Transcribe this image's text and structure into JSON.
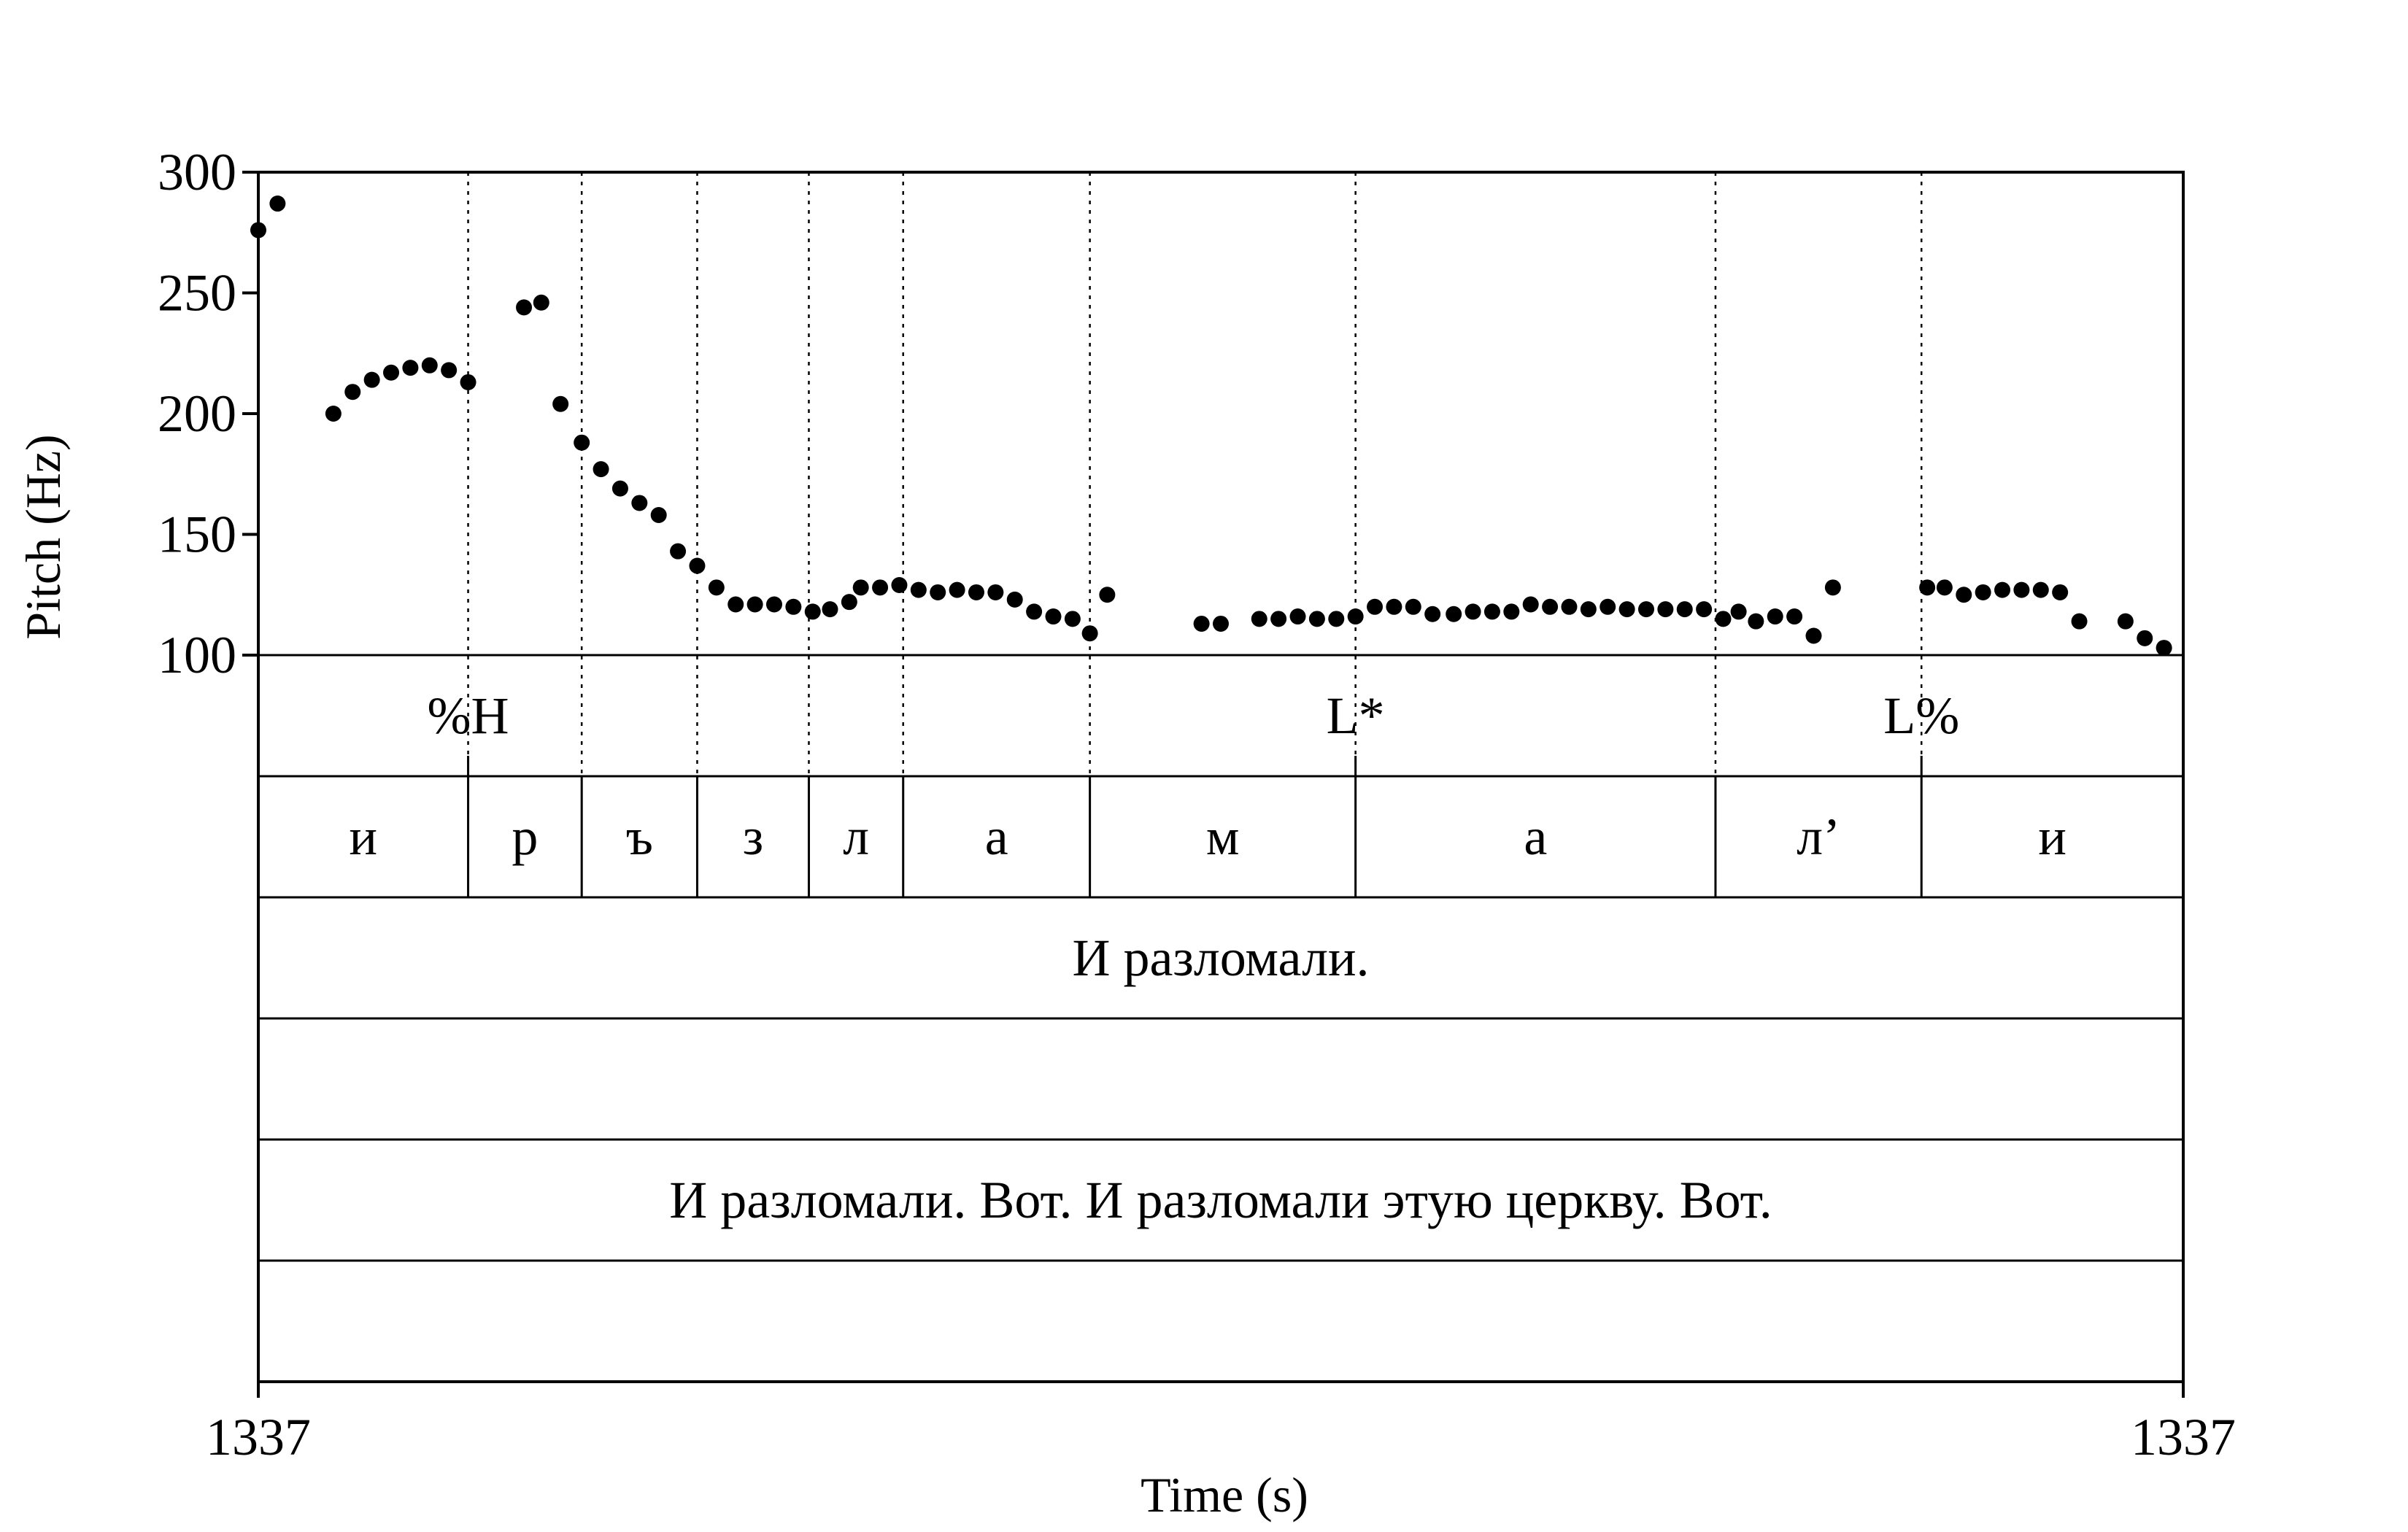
{
  "chart_data": {
    "type": "scatter",
    "title": "",
    "xlabel": "Time (s)",
    "ylabel": "Pitch (Hz)",
    "xlim": [
      0,
      1
    ],
    "ylim": [
      100,
      300
    ],
    "x_tick_labels": [
      "1337",
      "1337"
    ],
    "y_ticks": [
      100,
      150,
      200,
      250,
      300
    ],
    "grid": false,
    "legend": "none",
    "series": [
      {
        "x": [
          0.0,
          0.01,
          0.039,
          0.049,
          0.059,
          0.069,
          0.079,
          0.089,
          0.099,
          0.109,
          0.138,
          0.147,
          0.157,
          0.168,
          0.178,
          0.188,
          0.198,
          0.208,
          0.218,
          0.228,
          0.238,
          0.248,
          0.258,
          0.268,
          0.278,
          0.288,
          0.297,
          0.307,
          0.313,
          0.323,
          0.333,
          0.343,
          0.353,
          0.363,
          0.373,
          0.383,
          0.393,
          0.403,
          0.413,
          0.423,
          0.432,
          0.441,
          0.49,
          0.5,
          0.52,
          0.53,
          0.54,
          0.55,
          0.56,
          0.57,
          0.58,
          0.59,
          0.6,
          0.61,
          0.621,
          0.631,
          0.641,
          0.651,
          0.661,
          0.671,
          0.681,
          0.691,
          0.701,
          0.711,
          0.721,
          0.731,
          0.741,
          0.751,
          0.761,
          0.769,
          0.778,
          0.788,
          0.798,
          0.808,
          0.818,
          0.867,
          0.876,
          0.886,
          0.896,
          0.906,
          0.916,
          0.926,
          0.936,
          0.946,
          0.97,
          0.98,
          0.99
        ],
        "y": [
          276,
          287,
          200,
          209,
          214,
          217,
          219,
          220,
          218,
          213,
          244,
          246,
          204,
          188,
          177,
          169,
          163,
          158,
          143,
          137,
          128,
          121,
          121,
          121,
          120,
          118,
          119,
          122,
          128,
          128,
          129,
          127,
          126,
          127,
          126,
          126,
          123,
          118,
          116,
          115,
          109,
          125,
          113,
          113,
          115,
          115,
          116,
          115,
          115,
          116,
          120,
          120,
          120,
          117,
          117,
          118,
          118,
          118,
          121,
          120,
          120,
          119,
          120,
          119,
          119,
          119,
          119,
          119,
          115,
          118,
          114,
          116,
          116,
          108,
          128,
          128,
          128,
          125,
          126,
          127,
          127,
          127,
          126,
          114,
          114,
          107,
          103
        ]
      }
    ],
    "boundaries": [
      0.109,
      0.168,
      0.228,
      0.286,
      0.335,
      0.432,
      0.57,
      0.757,
      0.864
    ],
    "tiers": [
      {
        "name": "tones",
        "labels": [
          {
            "text": "%H",
            "x": 0.109
          },
          {
            "text": "L*",
            "x": 0.57
          },
          {
            "text": "L%",
            "x": 0.864
          }
        ]
      },
      {
        "name": "segments",
        "intervals": [
          {
            "text": "и",
            "start": 0.0,
            "end": 0.109
          },
          {
            "text": "р",
            "start": 0.109,
            "end": 0.168
          },
          {
            "text": "ъ",
            "start": 0.168,
            "end": 0.228
          },
          {
            "text": "з",
            "start": 0.228,
            "end": 0.286
          },
          {
            "text": "л",
            "start": 0.286,
            "end": 0.335
          },
          {
            "text": "а",
            "start": 0.335,
            "end": 0.432
          },
          {
            "text": "м",
            "start": 0.432,
            "end": 0.57
          },
          {
            "text": "а",
            "start": 0.57,
            "end": 0.757
          },
          {
            "text": "л’",
            "start": 0.757,
            "end": 0.864
          },
          {
            "text": "и",
            "start": 0.864,
            "end": 1.0
          }
        ]
      },
      {
        "name": "utterance",
        "intervals": [
          {
            "text": "И разломали.",
            "start": 0,
            "end": 1
          }
        ]
      },
      {
        "name": "blank-1",
        "intervals": [
          {
            "text": "",
            "start": 0,
            "end": 1
          }
        ]
      },
      {
        "name": "context",
        "intervals": [
          {
            "text": "И разломали. Вот. И разломали этую церкву. Вот.",
            "start": 0,
            "end": 1
          }
        ]
      },
      {
        "name": "blank-2",
        "intervals": [
          {
            "text": "",
            "start": 0,
            "end": 1
          }
        ]
      }
    ],
    "colors": {
      "points": "#000000",
      "lines": "#000000",
      "background": "#ffffff"
    }
  }
}
